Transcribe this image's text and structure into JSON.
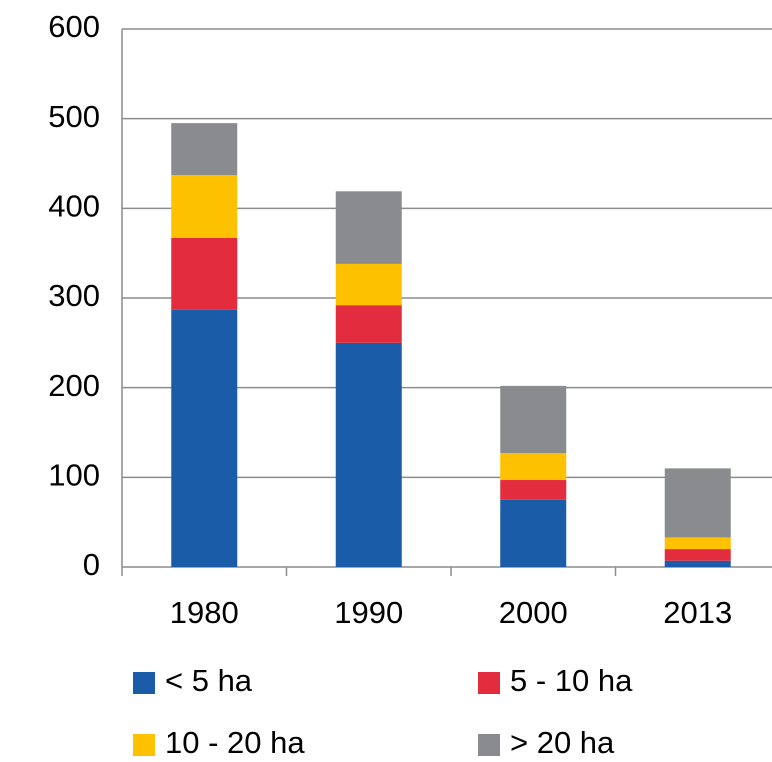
{
  "chart_data": {
    "type": "stacked_bar",
    "categories": [
      "1980",
      "1990",
      "2000",
      "2013"
    ],
    "series": [
      {
        "name": "< 5 ha",
        "color": "#1a5ca8",
        "values": [
          287,
          250,
          75,
          7
        ]
      },
      {
        "name": "5 - 10 ha",
        "color": "#e32d3e",
        "values": [
          80,
          42,
          22,
          13
        ]
      },
      {
        "name": "10 - 20 ha",
        "color": "#fdc100",
        "values": [
          70,
          46,
          30,
          13
        ]
      },
      {
        "name": "> 20 ha",
        "color": "#8a8b8f",
        "values": [
          58,
          81,
          75,
          77
        ]
      }
    ],
    "ylim": [
      0,
      600
    ],
    "yticks": [
      0,
      100,
      200,
      300,
      400,
      500,
      600
    ],
    "grid": true,
    "legend": "bottom"
  }
}
